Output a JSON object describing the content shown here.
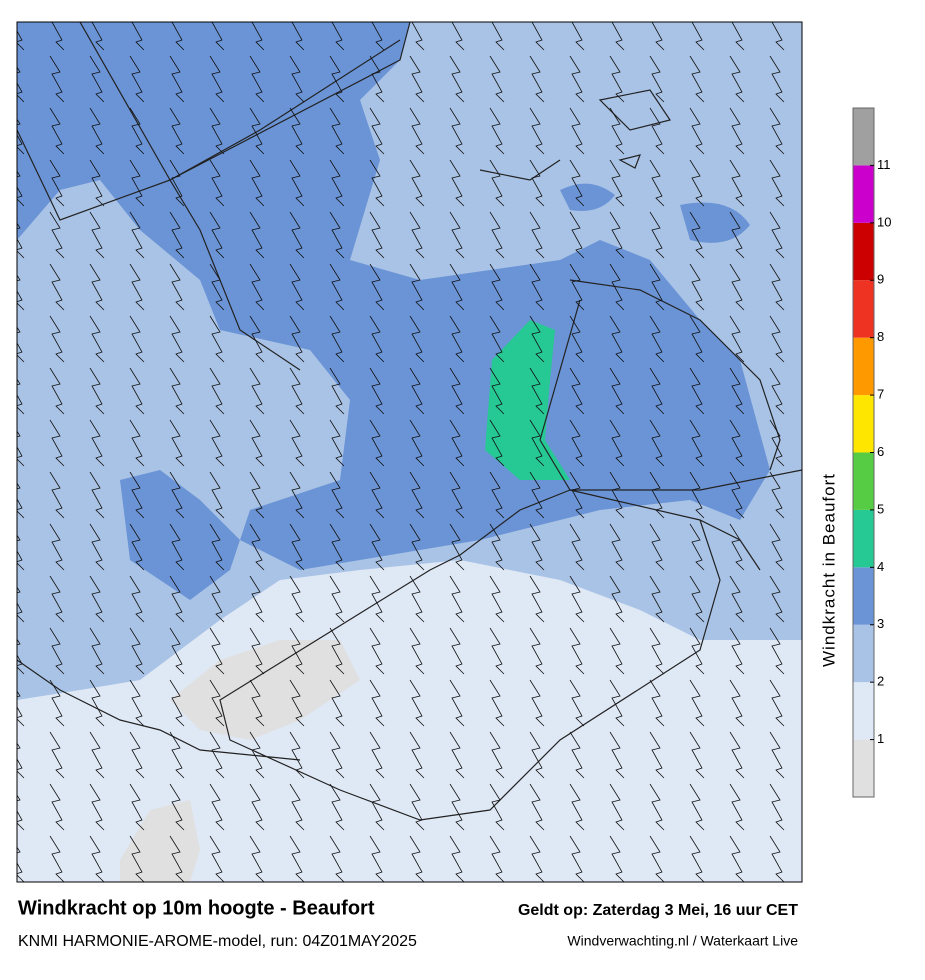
{
  "title": "Windkracht op 10m hoogte - Beaufort",
  "subtitle": "KNMI HARMONIE-AROME-model, run: 04Z01MAY2025",
  "valid_time": "Geldt op: Zaterdag 3 Mei, 16 uur CET",
  "credit": "Windverwachting.nl / Waterkaart Live",
  "colorbar": {
    "label": "Windkracht in Beaufort",
    "range": [
      0,
      12
    ],
    "ticks": [
      1,
      2,
      3,
      4,
      5,
      6,
      7,
      8,
      9,
      10,
      11
    ],
    "colors": [
      "#e0e0e0",
      "#dfe8f5",
      "#a9c3e6",
      "#6b94d6",
      "#26c993",
      "#55cc44",
      "#ffe600",
      "#ff9900",
      "#ee3322",
      "#cc0000",
      "#cc00cc",
      "#a0a0a0"
    ]
  }
}
